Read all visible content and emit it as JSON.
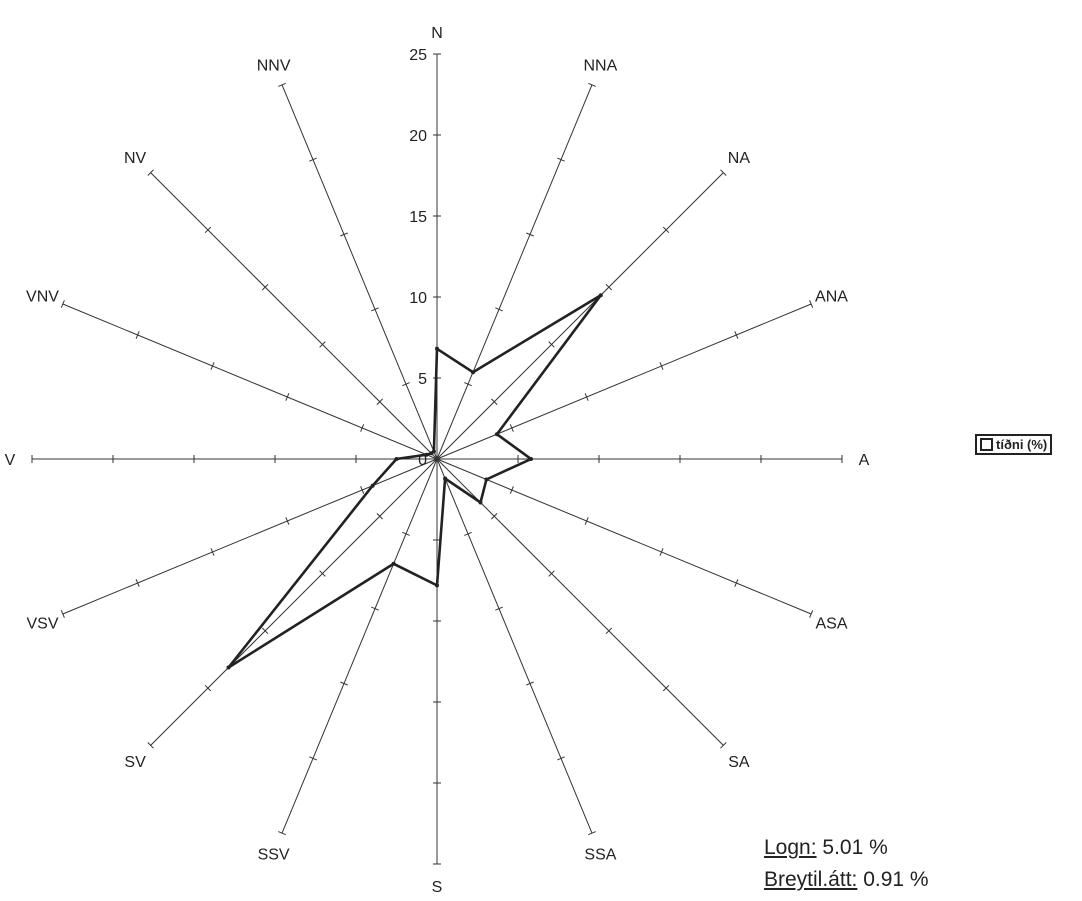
{
  "chart_data": {
    "type": "radar",
    "axes": [
      "N",
      "NNA",
      "NA",
      "ANA",
      "A",
      "ASA",
      "SA",
      "SSA",
      "S",
      "SSV",
      "SV",
      "VSV",
      "V",
      "VNV",
      "NV",
      "NNV"
    ],
    "ticks": [
      "0",
      "5",
      "10",
      "15",
      "20",
      "25"
    ],
    "rmax": 25,
    "series": [
      {
        "name": "tíðni (%)",
        "values": [
          6.8,
          5.8,
          14.3,
          4.0,
          5.8,
          3.3,
          3.8,
          1.3,
          7.8,
          7.0,
          18.2,
          4.3,
          2.5,
          0.7,
          0.5,
          0.5
        ]
      }
    ],
    "stats": [
      {
        "label": "Logn:",
        "value": "5.01 %"
      },
      {
        "label": "Breytil.átt:",
        "value": "0.91 %"
      }
    ]
  }
}
